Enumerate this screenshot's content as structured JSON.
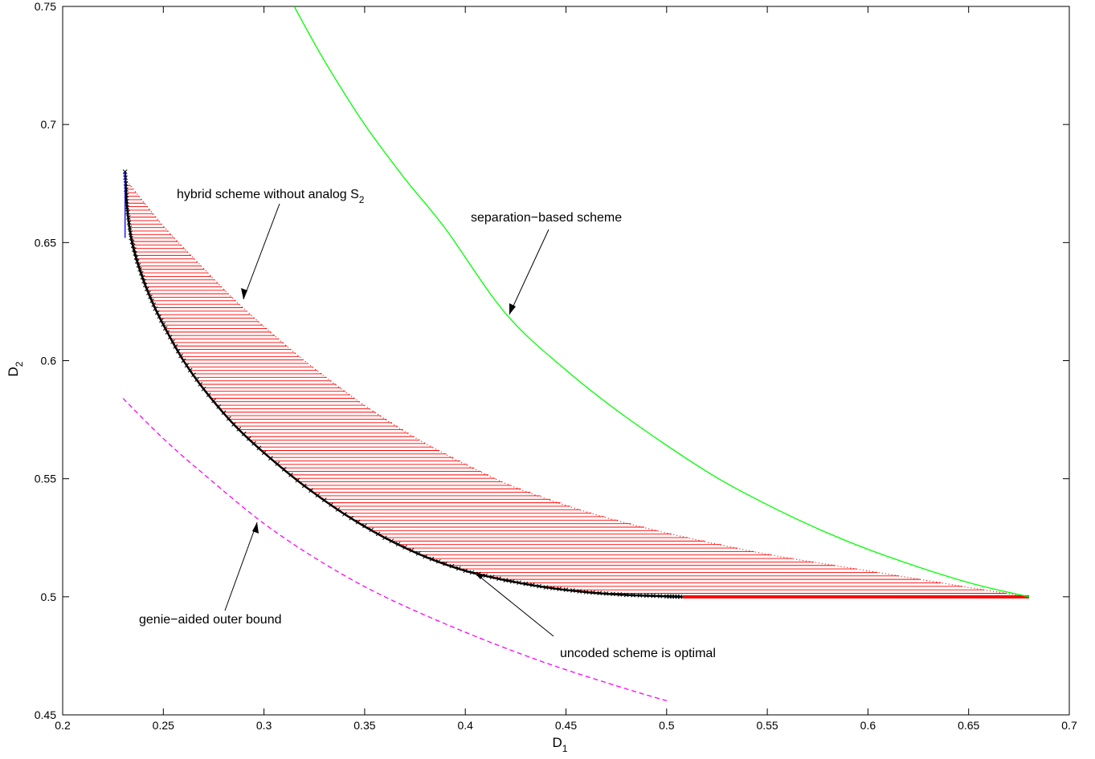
{
  "chart_data": {
    "type": "line",
    "xlabel": {
      "main": "D",
      "sub": "1"
    },
    "ylabel": {
      "main": "D",
      "sub": "2"
    },
    "xlim": [
      0.2,
      0.7
    ],
    "ylim": [
      0.45,
      0.75
    ],
    "xticks": [
      "0.2",
      "0.25",
      "0.3",
      "0.35",
      "0.4",
      "0.45",
      "0.5",
      "0.55",
      "0.6",
      "0.65",
      "0.7"
    ],
    "yticks": [
      "0.45",
      "0.5",
      "0.55",
      "0.6",
      "0.65",
      "0.7",
      "0.75"
    ],
    "grid": false,
    "colors": {
      "separation": "#00ff00",
      "genie": "#ff00ff",
      "hybrid_fill": "#ff0000",
      "uncoded": "#000000",
      "blue_segment": "#0000ff"
    },
    "series": [
      {
        "style": "solid",
        "color": "#00ff00",
        "x": [
          0.315,
          0.33,
          0.35,
          0.37,
          0.39,
          0.42,
          0.45,
          0.48,
          0.52,
          0.55,
          0.58,
          0.61,
          0.65,
          0.68
        ],
        "y": [
          0.75,
          0.727,
          0.7,
          0.677,
          0.656,
          0.62,
          0.596,
          0.576,
          0.553,
          0.539,
          0.527,
          0.517,
          0.506,
          0.5
        ]
      },
      {
        "style": "dashed",
        "color": "#ff00ff",
        "x": [
          0.23,
          0.25,
          0.27,
          0.3,
          0.33,
          0.36,
          0.4,
          0.44,
          0.48,
          0.5
        ],
        "y": [
          0.584,
          0.567,
          0.552,
          0.531,
          0.514,
          0.5,
          0.485,
          0.472,
          0.461,
          0.456
        ]
      },
      {
        "style": "dotted-hatched",
        "color": "#ff0000",
        "x": [
          0.231,
          0.25,
          0.27,
          0.29,
          0.32,
          0.35,
          0.38,
          0.42,
          0.46,
          0.5,
          0.55,
          0.6,
          0.65,
          0.68
        ],
        "y": [
          0.677,
          0.657,
          0.639,
          0.622,
          0.6,
          0.581,
          0.565,
          0.548,
          0.536,
          0.527,
          0.518,
          0.511,
          0.504,
          0.5
        ]
      },
      {
        "style": "x-markers",
        "color": "#000000",
        "x": [
          0.231,
          0.232,
          0.234,
          0.237,
          0.241,
          0.246,
          0.252,
          0.26,
          0.27,
          0.285,
          0.3,
          0.32,
          0.34,
          0.36,
          0.38,
          0.4,
          0.42,
          0.44,
          0.46,
          0.48,
          0.5,
          0.508
        ],
        "y": [
          0.68,
          0.665,
          0.652,
          0.642,
          0.632,
          0.622,
          0.612,
          0.6,
          0.588,
          0.573,
          0.561,
          0.547,
          0.535,
          0.525,
          0.517,
          0.511,
          0.507,
          0.504,
          0.502,
          0.5008,
          0.5002,
          0.5
        ]
      }
    ],
    "annotations": [
      {
        "text": "hybrid scheme without analog S",
        "sub": "2",
        "point": [
          0.288,
          0.625
        ]
      },
      {
        "text": "separation−based scheme",
        "point": [
          0.422,
          0.62
        ]
      },
      {
        "text": "genie−aided outer bound",
        "point": [
          0.298,
          0.532
        ]
      },
      {
        "text": "uncoded scheme is optimal",
        "point": [
          0.405,
          0.512
        ]
      }
    ]
  }
}
